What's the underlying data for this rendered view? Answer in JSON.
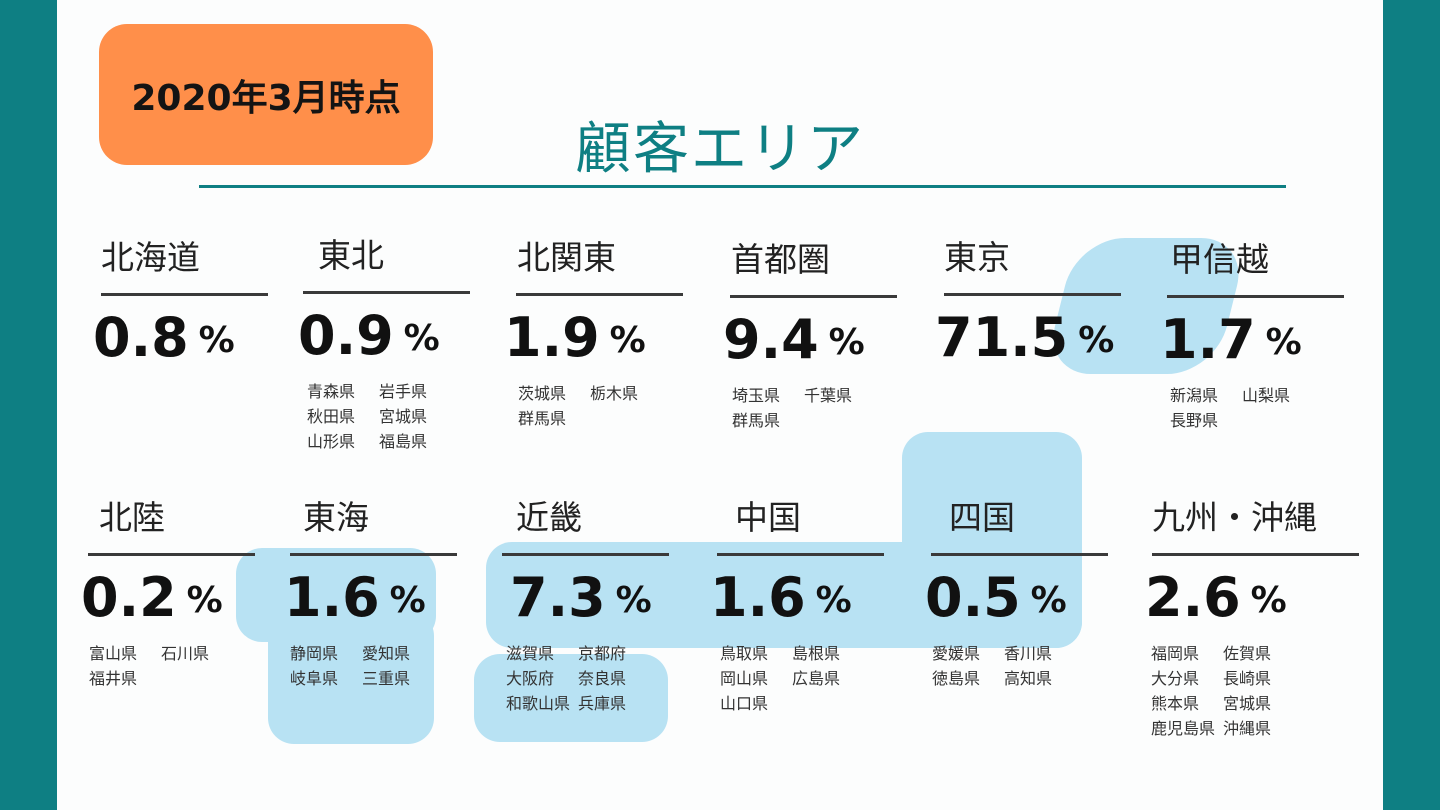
{
  "header": {
    "date_badge": "2020年3月時点",
    "title": "顧客エリア"
  },
  "colors": {
    "teal": "#0e7f83",
    "orange": "#ff8f4a",
    "highlight": "#b8e2f3"
  },
  "regions": [
    {
      "name": "北海道",
      "percent": "0.8",
      "unit": "%",
      "prefectures": []
    },
    {
      "name": "東北",
      "percent": "0.9",
      "unit": "%",
      "prefectures": [
        "青森県",
        "岩手県",
        "秋田県",
        "宮城県",
        "山形県",
        "福島県"
      ]
    },
    {
      "name": "北関東",
      "percent": "1.9",
      "unit": "%",
      "prefectures": [
        "茨城県",
        "栃木県",
        "群馬県"
      ]
    },
    {
      "name": "首都圏",
      "percent": "9.4",
      "unit": "%",
      "prefectures": [
        "埼玉県",
        "千葉県",
        "群馬県"
      ]
    },
    {
      "name": "東京",
      "percent": "71.5",
      "unit": "%",
      "prefectures": []
    },
    {
      "name": "甲信越",
      "percent": "1.7",
      "unit": "%",
      "prefectures": [
        "新潟県",
        "山梨県",
        "長野県"
      ]
    },
    {
      "name": "北陸",
      "percent": "0.2",
      "unit": "%",
      "prefectures": [
        "富山県",
        "石川県",
        "福井県"
      ]
    },
    {
      "name": "東海",
      "percent": "1.6",
      "unit": "%",
      "prefectures": [
        "静岡県",
        "愛知県",
        "岐阜県",
        "三重県"
      ]
    },
    {
      "name": "近畿",
      "percent": "7.3",
      "unit": "%",
      "prefectures": [
        "滋賀県",
        "京都府",
        "大阪府",
        "奈良県",
        "和歌山県",
        "兵庫県"
      ]
    },
    {
      "name": "中国",
      "percent": "1.6",
      "unit": "%",
      "prefectures": [
        "鳥取県",
        "島根県",
        "岡山県",
        "広島県",
        "山口県"
      ]
    },
    {
      "name": "四国",
      "percent": "0.5",
      "unit": "%",
      "prefectures": [
        "愛媛県",
        "香川県",
        "徳島県",
        "高知県"
      ]
    },
    {
      "name": "九州・沖縄",
      "percent": "2.6",
      "unit": "%",
      "prefectures": [
        "福岡県",
        "佐賀県",
        "大分県",
        "長崎県",
        "熊本県",
        "宮城県",
        "鹿児島県",
        "沖縄県"
      ]
    }
  ]
}
